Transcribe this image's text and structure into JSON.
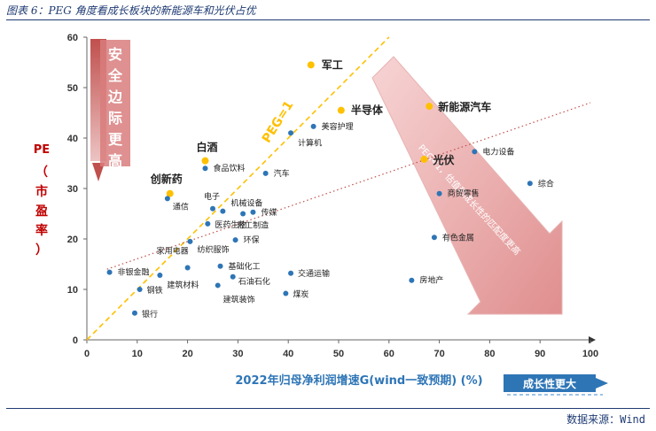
{
  "header": {
    "title": "图表 6：PEG 角度看成长板块的新能源车和光伏占优"
  },
  "footer": {
    "source": "数据来源：Wind"
  },
  "colors": {
    "point": "#2e75b6",
    "highlight": "#ffc000",
    "peg_line": "#ffc000",
    "trend_line": "#c0504d",
    "arrow": "#e8a0a0",
    "ylabel": "#c00000",
    "xlabel": "#2e75b6",
    "growth_box": "#2e75b6"
  },
  "annotations": {
    "safety_margin": "安全边际更高",
    "growth_better": "成长性更大",
    "peg_line_label": "PEG=1",
    "arrow_text": "PEG<1，估值和成长性的匹配度更高"
  },
  "chart_data": {
    "type": "scatter",
    "title": "",
    "xlabel": "2022年归母净利润增速G(wind一致预期) (%)",
    "ylabel": "PE（市盈率）",
    "xlim": [
      0,
      100
    ],
    "ylim": [
      0,
      60
    ],
    "x_ticks": [
      0,
      10,
      20,
      30,
      40,
      50,
      60,
      70,
      80,
      90,
      100
    ],
    "y_ticks": [
      0,
      10,
      20,
      30,
      40,
      50,
      60
    ],
    "grid": false,
    "lines": [
      {
        "label": "PEG=1",
        "style": "dashed",
        "x": [
          0,
          60
        ],
        "y": [
          0,
          60
        ]
      },
      {
        "label": "",
        "style": "dotted",
        "x": [
          4,
          100
        ],
        "y": [
          14,
          47
        ]
      }
    ],
    "points": [
      {
        "name": "军工",
        "x": 44.5,
        "y": 54.5,
        "highlight": true
      },
      {
        "name": "半导体",
        "x": 50.5,
        "y": 45.5,
        "highlight": true
      },
      {
        "name": "新能源汽车",
        "x": 68,
        "y": 46.3,
        "highlight": true
      },
      {
        "name": "光伏",
        "x": 67,
        "y": 35.8,
        "highlight": true
      },
      {
        "name": "白酒",
        "x": 23.5,
        "y": 35.5,
        "highlight": true
      },
      {
        "name": "创新药",
        "x": 16.5,
        "y": 29,
        "highlight": true
      },
      {
        "name": "美容护理",
        "x": 45,
        "y": 42.3,
        "highlight": false
      },
      {
        "name": "计算机",
        "x": 40.5,
        "y": 41,
        "highlight": false
      },
      {
        "name": "食品饮料",
        "x": 23.5,
        "y": 34,
        "highlight": false
      },
      {
        "name": "汽车",
        "x": 35.5,
        "y": 33,
        "highlight": false
      },
      {
        "name": "电力设备",
        "x": 77,
        "y": 37.3,
        "highlight": false
      },
      {
        "name": "综合",
        "x": 88,
        "y": 31,
        "highlight": false
      },
      {
        "name": "商贸零售",
        "x": 70,
        "y": 29,
        "highlight": false
      },
      {
        "name": "通信",
        "x": 16,
        "y": 28,
        "highlight": false
      },
      {
        "name": "电子",
        "x": 25,
        "y": 26,
        "highlight": false
      },
      {
        "name": "机械设备",
        "x": 27,
        "y": 25.5,
        "highlight": false
      },
      {
        "name": "传媒",
        "x": 33,
        "y": 25.3,
        "highlight": false
      },
      {
        "name": "轻工制造",
        "x": 31,
        "y": 25,
        "highlight": false
      },
      {
        "name": "医药生物",
        "x": 24,
        "y": 23,
        "highlight": false
      },
      {
        "name": "有色金属",
        "x": 69,
        "y": 20.3,
        "highlight": false
      },
      {
        "name": "环保",
        "x": 29.5,
        "y": 19.8,
        "highlight": false
      },
      {
        "name": "纺织服饰",
        "x": 20.5,
        "y": 19.5,
        "highlight": false
      },
      {
        "name": "家用电器",
        "x": 20,
        "y": 14.3,
        "highlight": false
      },
      {
        "name": "基础化工",
        "x": 26.5,
        "y": 14.6,
        "highlight": false
      },
      {
        "name": "非银金融",
        "x": 4.5,
        "y": 13.4,
        "highlight": false
      },
      {
        "name": "石油石化",
        "x": 29,
        "y": 12.5,
        "highlight": false
      },
      {
        "name": "交通运输",
        "x": 40.5,
        "y": 13.2,
        "highlight": false
      },
      {
        "name": "建筑材料",
        "x": 14.5,
        "y": 12.8,
        "highlight": false
      },
      {
        "name": "房地产",
        "x": 64.5,
        "y": 11.8,
        "highlight": false
      },
      {
        "name": "钢铁",
        "x": 10.5,
        "y": 10,
        "highlight": false
      },
      {
        "name": "建筑装饰",
        "x": 26,
        "y": 10.8,
        "highlight": false
      },
      {
        "name": "煤炭",
        "x": 39.5,
        "y": 9.2,
        "highlight": false
      },
      {
        "name": "银行",
        "x": 9.5,
        "y": 5.3,
        "highlight": false
      }
    ]
  }
}
